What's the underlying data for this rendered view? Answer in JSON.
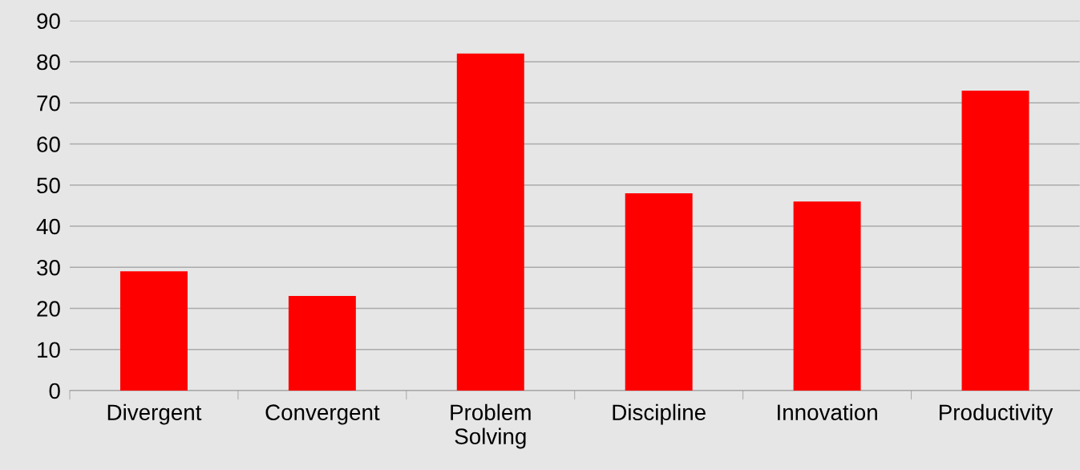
{
  "chart_data": {
    "type": "bar",
    "categories": [
      "Divergent",
      "Convergent",
      "Problem\nSolving",
      "Discipline",
      "Innovation",
      "Productivity"
    ],
    "values": [
      29,
      23,
      82,
      48,
      46,
      73
    ],
    "color": "#ff0000",
    "ylim": [
      0,
      90
    ],
    "yticks": [
      0,
      10,
      20,
      30,
      40,
      50,
      60,
      70,
      80,
      90
    ],
    "grid": "y"
  }
}
